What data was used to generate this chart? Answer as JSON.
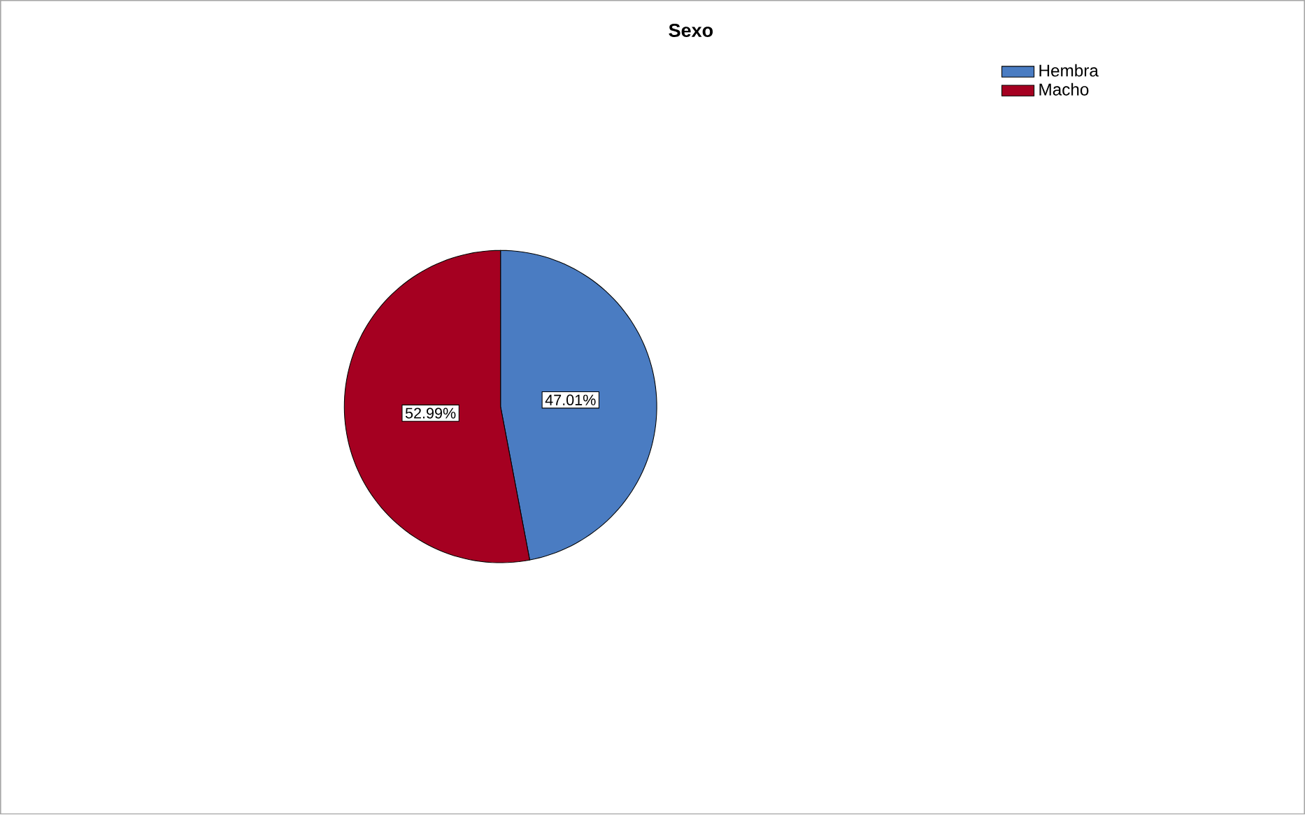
{
  "chart_data": {
    "type": "pie",
    "title": "Sexo",
    "categories": [
      "Hembra",
      "Macho"
    ],
    "values": [
      47.01,
      52.99
    ],
    "value_labels": [
      "47.01%",
      "52.99%"
    ],
    "colors": [
      "#4a7cc2",
      "#a50021"
    ],
    "legend": "top right"
  }
}
